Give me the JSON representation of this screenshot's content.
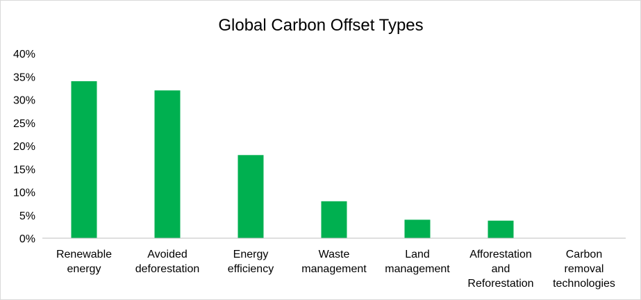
{
  "chart_data": {
    "type": "bar",
    "title": "Global Carbon Offset Types",
    "xlabel": "",
    "ylabel": "",
    "categories": [
      "Renewable energy",
      "Avoided deforestation",
      "Energy efficiency",
      "Waste management",
      "Land management",
      "Afforestation and Reforestation",
      "Carbon removal technologies"
    ],
    "category_label_lines": [
      [
        "Renewable",
        "energy"
      ],
      [
        "Avoided",
        "deforestation"
      ],
      [
        "Energy",
        "efficiency"
      ],
      [
        "Waste",
        "management"
      ],
      [
        "Land",
        "management"
      ],
      [
        "Afforestation",
        "and",
        "Reforestation"
      ],
      [
        "Carbon",
        "removal",
        "technologies"
      ]
    ],
    "values": [
      34,
      32,
      18,
      8,
      4,
      3.8,
      0
    ],
    "unit": "%",
    "ylim": [
      0,
      40
    ],
    "yticks": [
      "0%",
      "5%",
      "10%",
      "15%",
      "20%",
      "25%",
      "30%",
      "35%",
      "40%"
    ],
    "ytick_values": [
      0,
      5,
      10,
      15,
      20,
      25,
      30,
      35,
      40
    ],
    "grid": false,
    "legend": "none",
    "bar_color": "#00b050",
    "axis_color": "#bfbfbf"
  }
}
